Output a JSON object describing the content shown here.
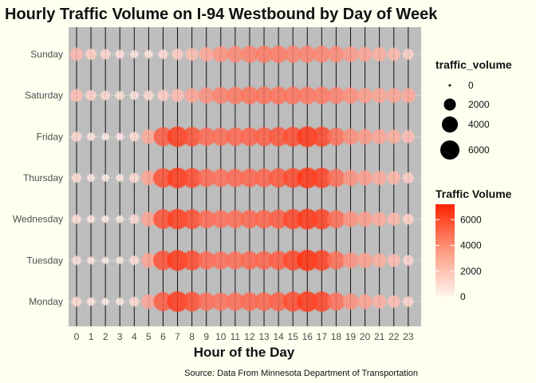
{
  "chart_data": {
    "type": "scatter",
    "title": "Hourly Traffic Volume on I-94 Westbound by Day of Week",
    "xlabel": "Hour of the Day",
    "ylabel": "",
    "caption": "Source: Data From Minnesota Department of Transportation",
    "x_categories": [
      "0",
      "1",
      "2",
      "3",
      "4",
      "5",
      "6",
      "7",
      "8",
      "9",
      "10",
      "11",
      "12",
      "13",
      "14",
      "15",
      "16",
      "17",
      "18",
      "19",
      "20",
      "21",
      "22",
      "23"
    ],
    "y_categories": [
      "Monday",
      "Tuesday",
      "Wednesday",
      "Thursday",
      "Friday",
      "Saturday",
      "Sunday"
    ],
    "grid": true,
    "legend_position": "right",
    "size_legend": {
      "title": "traffic_volume",
      "breaks": [
        0,
        2000,
        4000,
        6000
      ]
    },
    "color_legend": {
      "title": "Traffic Volume",
      "breaks": [
        0,
        2000,
        4000,
        6000
      ],
      "low_color": "#fff5f0",
      "high_color": "#ff2200",
      "max": 7200
    },
    "series": [
      {
        "y": "Monday",
        "values": [
          900,
          500,
          350,
          400,
          850,
          2700,
          5200,
          6300,
          5600,
          4600,
          4400,
          4600,
          4800,
          4800,
          5100,
          5700,
          6300,
          6000,
          4500,
          3400,
          2800,
          2300,
          1800,
          1100
        ]
      },
      {
        "y": "Tuesday",
        "values": [
          700,
          400,
          300,
          350,
          800,
          2800,
          5600,
          6400,
          5800,
          4700,
          4500,
          4600,
          4800,
          4900,
          5200,
          5900,
          6700,
          6200,
          4600,
          3400,
          2900,
          2400,
          1900,
          1100
        ]
      },
      {
        "y": "Wednesday",
        "values": [
          750,
          450,
          350,
          400,
          850,
          2800,
          5600,
          6200,
          5700,
          4700,
          4500,
          4600,
          4800,
          4900,
          5200,
          5900,
          6400,
          6100,
          4600,
          3400,
          3000,
          2500,
          2000,
          1200
        ]
      },
      {
        "y": "Thursday",
        "values": [
          800,
          450,
          350,
          400,
          850,
          2800,
          5600,
          6300,
          5800,
          4700,
          4500,
          4700,
          4800,
          4900,
          5300,
          5800,
          6500,
          6100,
          4600,
          3400,
          3000,
          2500,
          2100,
          1300
        ]
      },
      {
        "y": "Friday",
        "values": [
          1000,
          500,
          350,
          400,
          800,
          2600,
          5200,
          6200,
          5500,
          4700,
          4600,
          4800,
          4900,
          5100,
          5400,
          5700,
          6400,
          5900,
          4500,
          3500,
          3100,
          2700,
          2400,
          1900
        ]
      },
      {
        "y": "Saturday",
        "values": [
          1800,
          1100,
          850,
          650,
          600,
          900,
          1300,
          1900,
          2700,
          3400,
          3900,
          4200,
          4400,
          4400,
          4400,
          4400,
          4300,
          4200,
          3900,
          3500,
          3000,
          2800,
          2700,
          2600
        ]
      },
      {
        "y": "Sunday",
        "values": [
          2000,
          1300,
          1000,
          650,
          500,
          550,
          800,
          1300,
          1900,
          2600,
          3300,
          3700,
          3900,
          4100,
          4100,
          3900,
          3900,
          3800,
          3600,
          3100,
          2700,
          2400,
          2000,
          1200
        ]
      }
    ]
  }
}
